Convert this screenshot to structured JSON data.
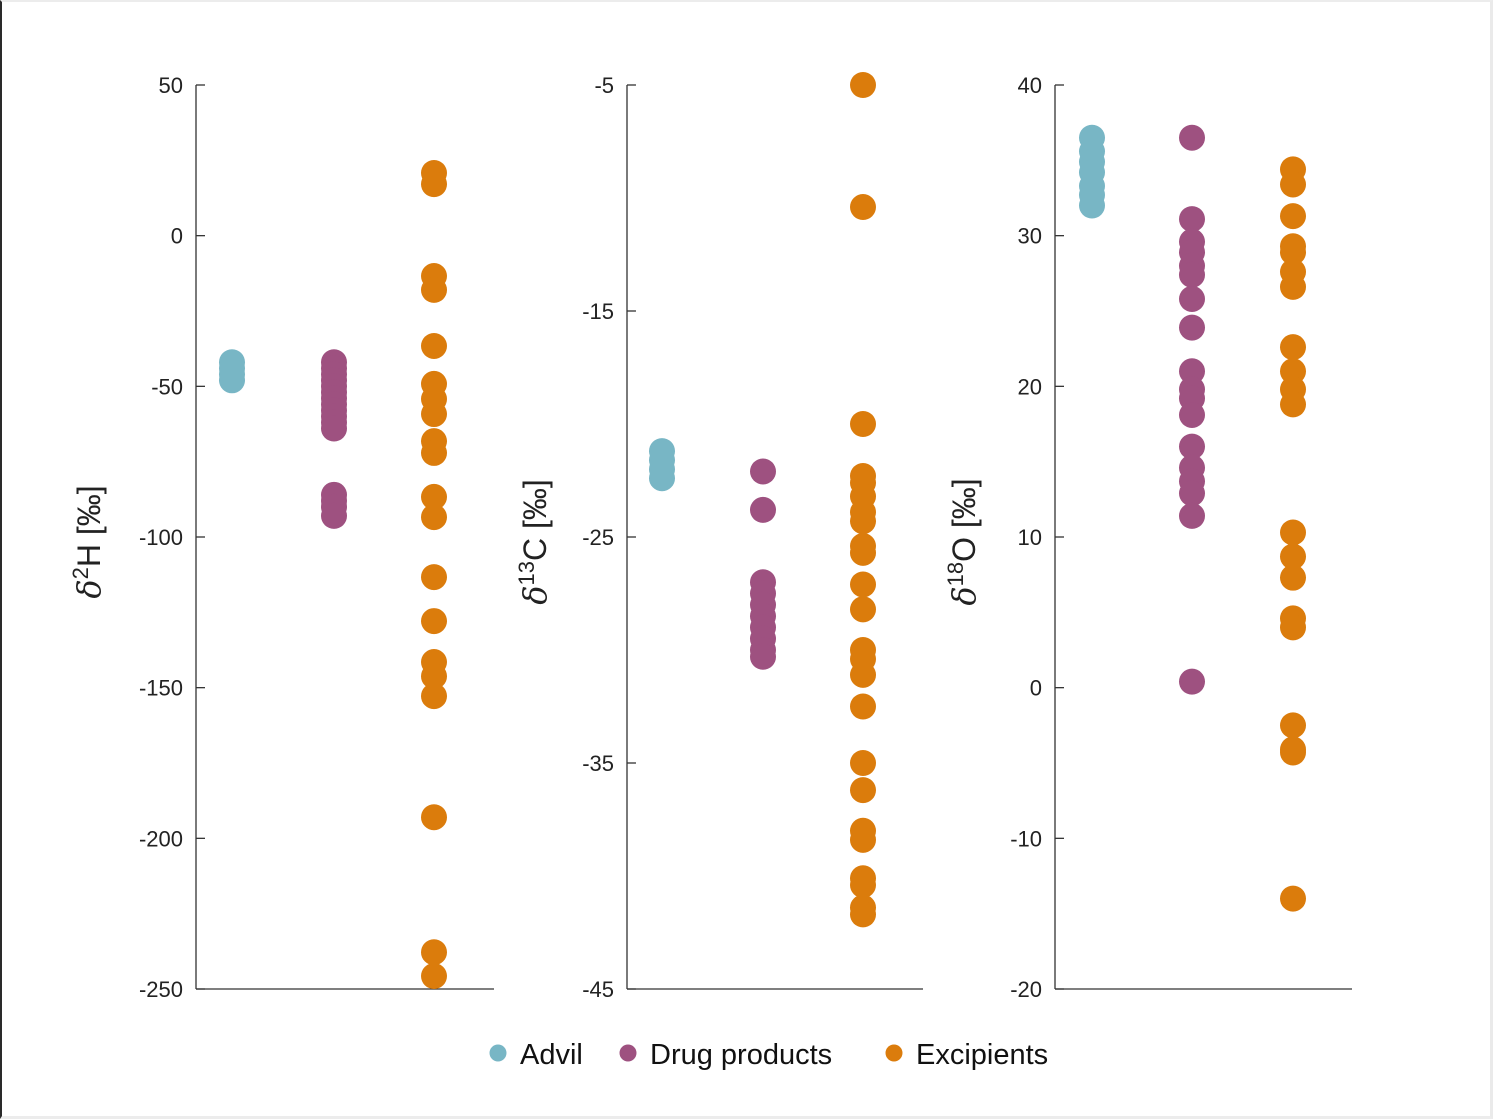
{
  "chart_data": [
    {
      "type": "scatter",
      "panel": "d2H",
      "ylabel": {
        "symbol": "δ",
        "superscript": "2",
        "element": "H",
        "unit": " [‰]"
      },
      "ylim": [
        -250,
        50
      ],
      "yticks": [
        50,
        0,
        -50,
        -100,
        -150,
        -200,
        -250
      ],
      "xlabel": "",
      "categories": [
        "Advil",
        "Drug products",
        "Excipients"
      ],
      "series": [
        {
          "name": "Advil",
          "values": [
            -42,
            -44,
            -46,
            -48
          ]
        },
        {
          "name": "Drug products",
          "values": [
            -42,
            -44,
            -46,
            -48,
            -50,
            -52,
            -54,
            -56,
            -58,
            -60,
            -62,
            -64,
            -86,
            -88,
            -90,
            -93
          ]
        },
        {
          "name": "Excipients",
          "values": [
            20.8,
            17.1,
            -13.4,
            -18,
            -36.6,
            -49.2,
            -54.2,
            -59.2,
            -68.2,
            -72.1,
            -86.7,
            -93.4,
            -113.3,
            -127.9,
            -141.5,
            -146.2,
            -152.8,
            -193,
            -237.8,
            -245.7
          ]
        }
      ]
    },
    {
      "type": "scatter",
      "panel": "d13C",
      "ylabel": {
        "symbol": "δ",
        "superscript": "13",
        "element": "C",
        "unit": " [‰]"
      },
      "ylim": [
        -45,
        -5
      ],
      "yticks": [
        -5,
        -15,
        -25,
        -35,
        -45
      ],
      "xlabel": "",
      "categories": [
        "Advil",
        "Drug products",
        "Excipients"
      ],
      "series": [
        {
          "name": "Advil",
          "values": [
            -21.2,
            -21.6,
            -22.0,
            -22.4
          ]
        },
        {
          "name": "Drug products",
          "values": [
            -22.1,
            -23.8,
            -27.0,
            -27.5,
            -28.0,
            -28.5,
            -29.0,
            -29.5,
            -30.0,
            -30.3
          ]
        },
        {
          "name": "Excipients",
          "values": [
            -5.0,
            -10.4,
            -20.0,
            -22.3,
            -22.6,
            -23.2,
            -23.9,
            -24.3,
            -25.4,
            -25.7,
            -27.1,
            -28.2,
            -30.0,
            -30.4,
            -31.1,
            -32.5,
            -35.0,
            -36.2,
            -38.0,
            -38.4,
            -40.1,
            -40.4,
            -41.4,
            -41.7
          ]
        }
      ]
    },
    {
      "type": "scatter",
      "panel": "d18O",
      "ylabel": {
        "symbol": "δ",
        "superscript": "18",
        "element": "O",
        "unit": " [‰]"
      },
      "ylim": [
        -20,
        40
      ],
      "yticks": [
        40,
        30,
        20,
        10,
        0,
        -10,
        -20
      ],
      "xlabel": "",
      "categories": [
        "Advil",
        "Drug products",
        "Excipients"
      ],
      "series": [
        {
          "name": "Advil",
          "values": [
            36.5,
            35.6,
            34.9,
            34.2,
            33.3,
            32.7,
            32.0
          ]
        },
        {
          "name": "Drug products",
          "values": [
            36.5,
            31.1,
            29.6,
            28.9,
            28.0,
            27.4,
            25.8,
            23.9,
            21.0,
            19.8,
            19.2,
            18.1,
            16.0,
            14.6,
            13.7,
            12.9,
            11.4,
            0.4
          ]
        },
        {
          "name": "Excipients",
          "values": [
            34.4,
            33.4,
            31.3,
            29.3,
            28.9,
            27.6,
            26.6,
            22.6,
            21.0,
            19.8,
            18.8,
            10.3,
            8.7,
            7.3,
            4.6,
            4.0,
            -2.5,
            -4.1,
            -4.3,
            -14.0
          ]
        }
      ]
    }
  ],
  "legend": {
    "placement": "bottom-center",
    "items": [
      {
        "label": "Advil",
        "color": "#78b6c5"
      },
      {
        "label": "Drug products",
        "color": "#9e5180"
      },
      {
        "label": "Excipients",
        "color": "#db7c0c"
      }
    ]
  },
  "colors": {
    "Advil": "#78b6c5",
    "Drug products": "#9e5180",
    "Excipients": "#db7c0c",
    "axis": "#333333"
  }
}
